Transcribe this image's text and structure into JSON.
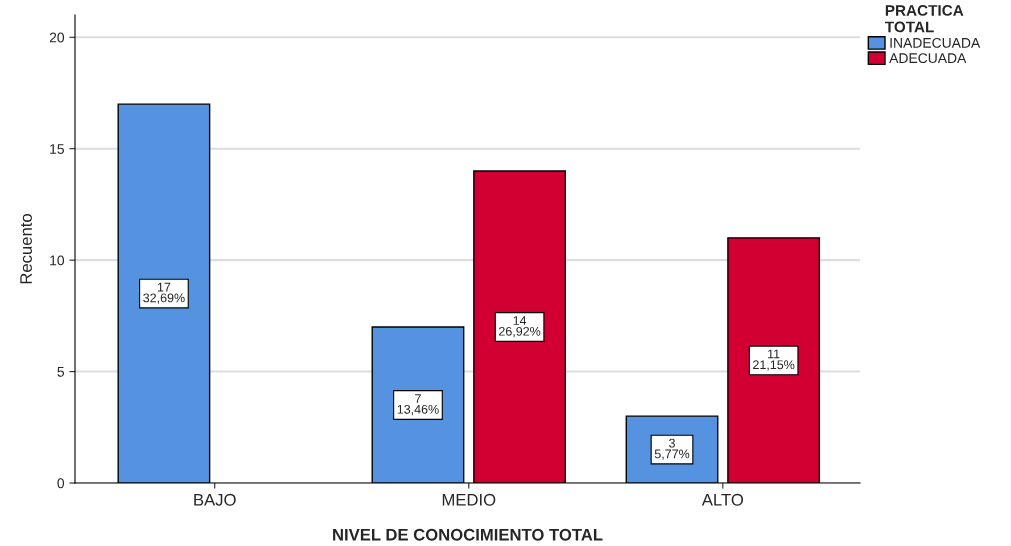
{
  "chart_data": {
    "type": "bar",
    "xlabel": "NIVEL DE CONOCIMIENTO TOTAL",
    "ylabel": "Recuento",
    "legend_title": "PRACTICA\nTOTAL",
    "categories": [
      "BAJO",
      "MEDIO",
      "ALTO"
    ],
    "series": [
      {
        "name": "INADECUADA",
        "color": "#5592e0",
        "values": [
          17,
          7,
          3
        ],
        "value_labels": [
          "17\n32,69%",
          "7\n13,46%",
          "3\n5,77%"
        ]
      },
      {
        "name": "ADECUADA",
        "color": "#d20032",
        "values": [
          null,
          14,
          11
        ],
        "value_labels": [
          null,
          "14\n26,92%",
          "11\n21,15%"
        ]
      }
    ],
    "ylim": [
      0,
      21
    ],
    "yticks": [
      0,
      5,
      10,
      15,
      20
    ],
    "grid": "y",
    "legend": "top right"
  }
}
